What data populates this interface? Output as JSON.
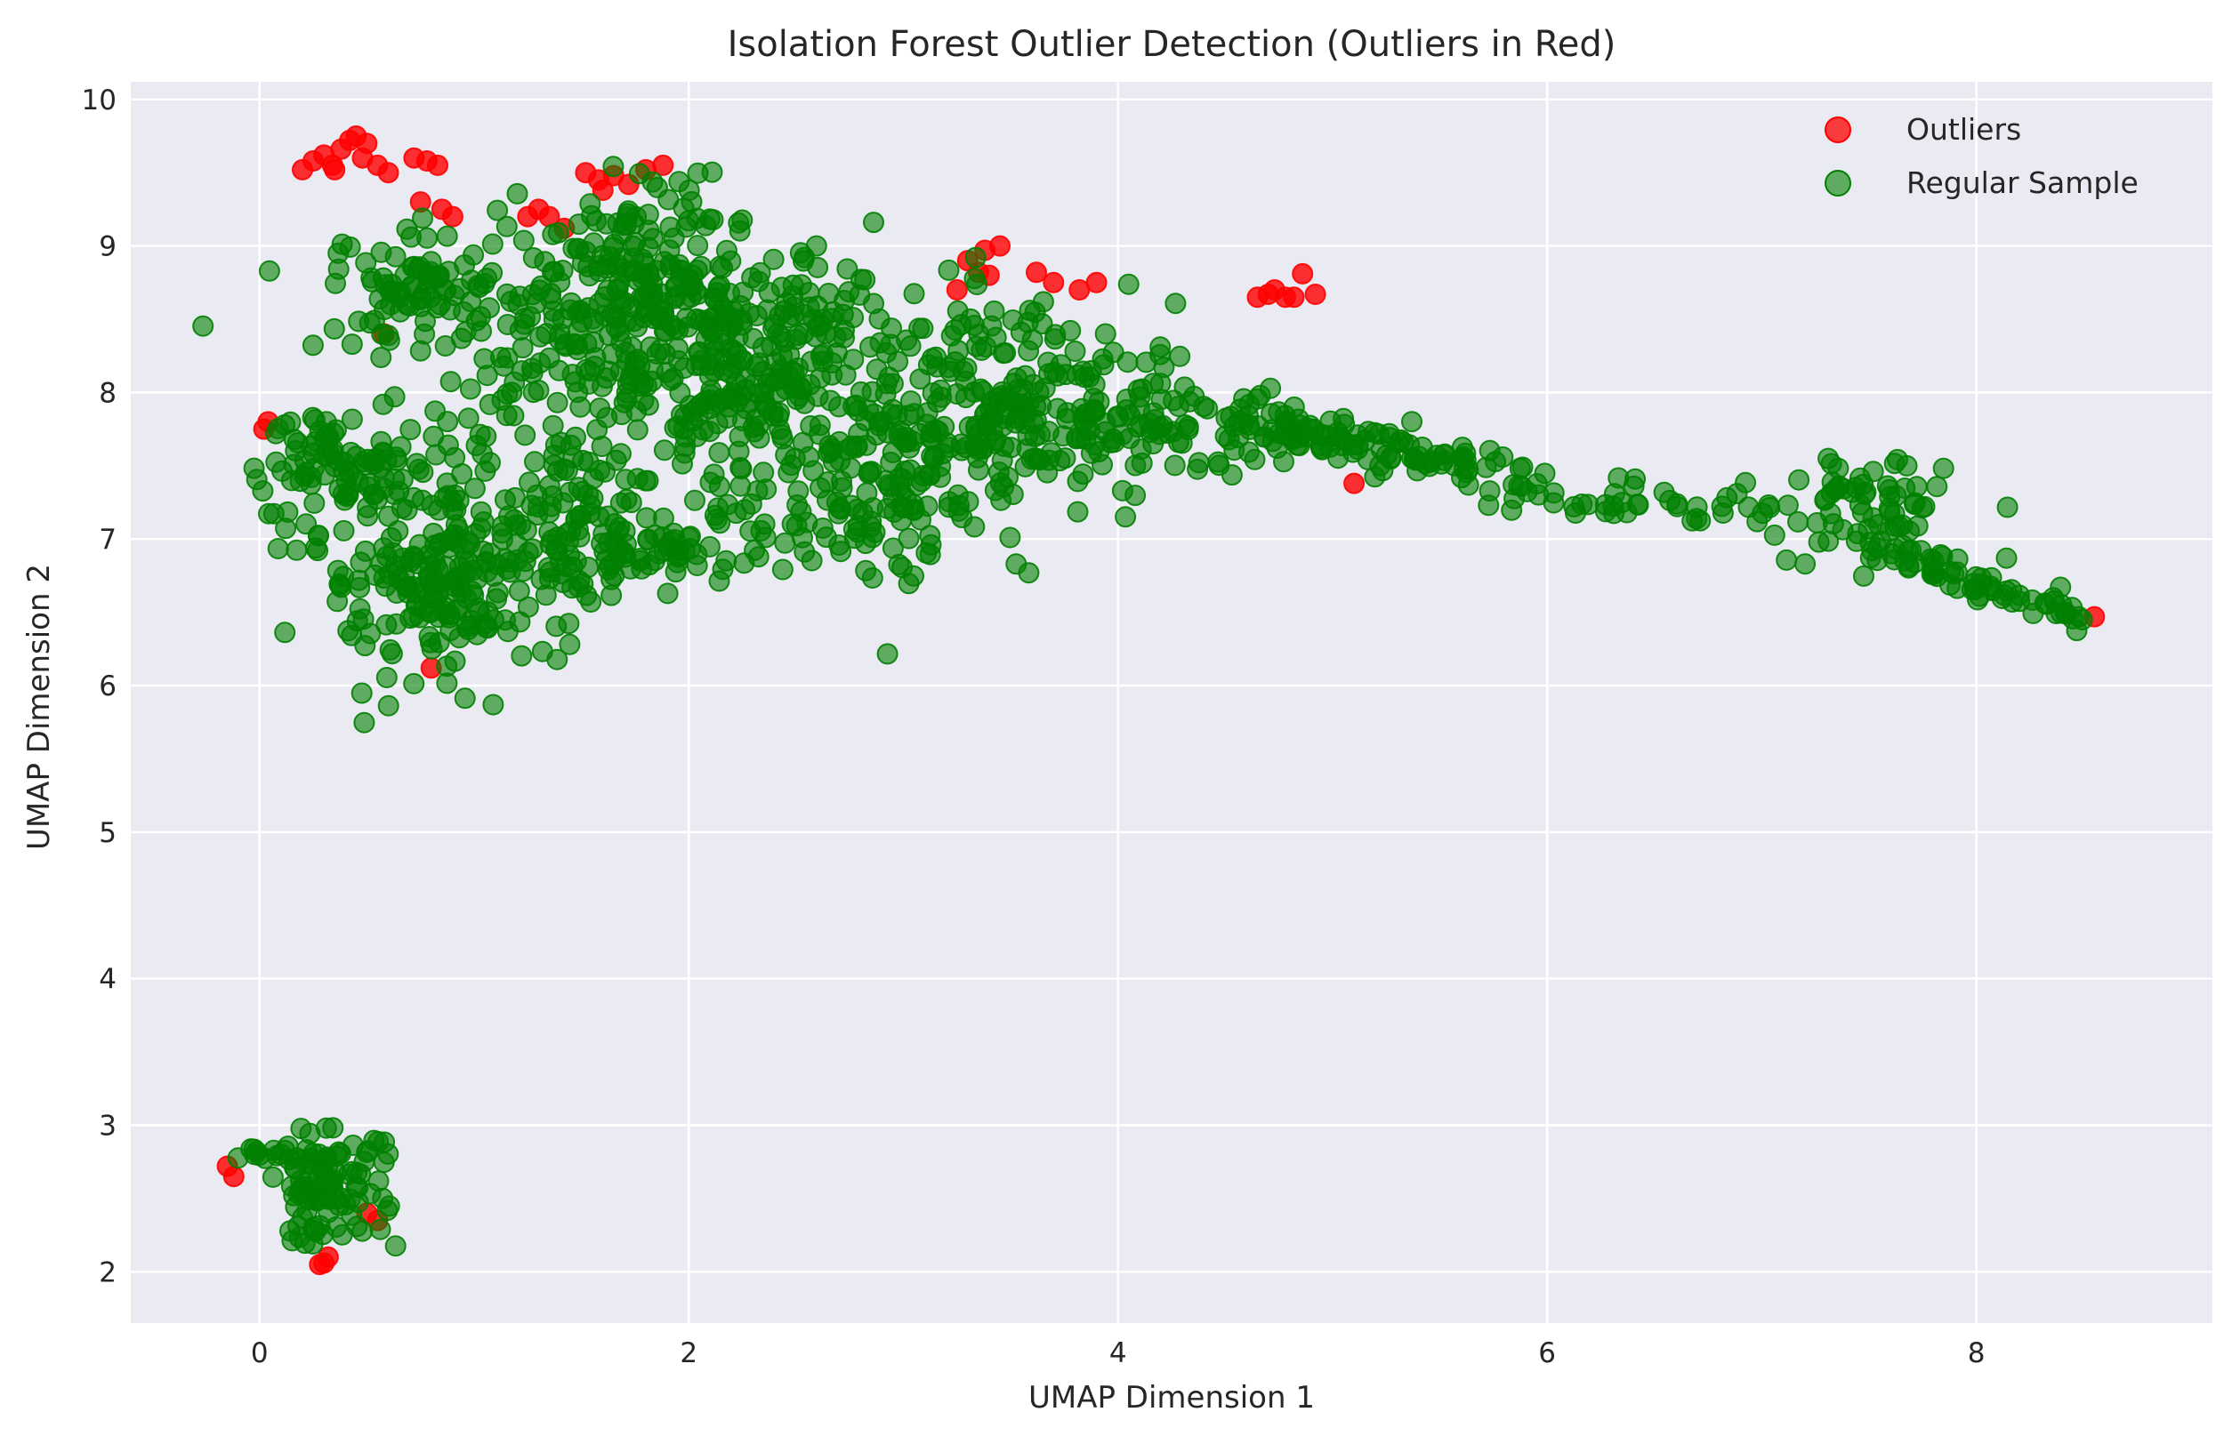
{
  "chart_data": {
    "type": "scatter",
    "title": "Isolation Forest Outlier Detection (Outliers in Red)",
    "xlabel": "UMAP Dimension 1",
    "ylabel": "UMAP Dimension 2",
    "xlim": [
      -0.6,
      9.1
    ],
    "ylim": [
      1.65,
      10.12
    ],
    "xticks": [
      0,
      2,
      4,
      6,
      8
    ],
    "yticks": [
      2,
      3,
      4,
      5,
      6,
      7,
      8,
      9,
      10
    ],
    "grid": true,
    "legend_position": "top-right",
    "background_color": "#eaeaf2",
    "grid_color": "#ffffff",
    "series": [
      {
        "name": "Outliers",
        "color": "#ff0000",
        "points": [
          [
            0.2,
            9.52
          ],
          [
            0.25,
            9.58
          ],
          [
            0.3,
            9.62
          ],
          [
            0.34,
            9.55
          ],
          [
            0.38,
            9.66
          ],
          [
            0.42,
            9.72
          ],
          [
            0.45,
            9.75
          ],
          [
            0.5,
            9.7
          ],
          [
            0.55,
            9.55
          ],
          [
            0.6,
            9.5
          ],
          [
            0.35,
            9.52
          ],
          [
            0.48,
            9.6
          ],
          [
            0.72,
            9.6
          ],
          [
            0.78,
            9.58
          ],
          [
            0.83,
            9.55
          ],
          [
            0.75,
            9.3
          ],
          [
            0.85,
            9.25
          ],
          [
            0.9,
            9.2
          ],
          [
            1.25,
            9.2
          ],
          [
            1.3,
            9.25
          ],
          [
            1.35,
            9.2
          ],
          [
            1.42,
            9.12
          ],
          [
            1.52,
            9.5
          ],
          [
            1.58,
            9.45
          ],
          [
            1.65,
            9.48
          ],
          [
            1.72,
            9.42
          ],
          [
            1.8,
            9.52
          ],
          [
            1.88,
            9.55
          ],
          [
            1.6,
            9.38
          ],
          [
            3.3,
            8.9
          ],
          [
            3.38,
            8.97
          ],
          [
            3.45,
            9.0
          ],
          [
            3.35,
            8.82
          ],
          [
            3.4,
            8.8
          ],
          [
            3.62,
            8.82
          ],
          [
            3.7,
            8.75
          ],
          [
            3.82,
            8.7
          ],
          [
            3.9,
            8.75
          ],
          [
            3.25,
            8.7
          ],
          [
            4.65,
            8.65
          ],
          [
            4.7,
            8.67
          ],
          [
            4.73,
            8.7
          ],
          [
            4.78,
            8.65
          ],
          [
            4.82,
            8.65
          ],
          [
            4.86,
            8.81
          ],
          [
            4.92,
            8.67
          ],
          [
            0.02,
            7.75
          ],
          [
            0.04,
            7.8
          ],
          [
            0.58,
            8.4
          ],
          [
            0.8,
            6.12
          ],
          [
            5.1,
            7.38
          ],
          [
            8.55,
            6.47
          ],
          [
            -0.15,
            2.72
          ],
          [
            -0.12,
            2.65
          ],
          [
            0.3,
            2.06
          ],
          [
            0.32,
            2.1
          ],
          [
            0.28,
            2.05
          ],
          [
            0.55,
            2.35
          ],
          [
            0.5,
            2.4
          ]
        ]
      },
      {
        "name": "Regular Sample",
        "color": "#008000",
        "points": []
      }
    ]
  }
}
